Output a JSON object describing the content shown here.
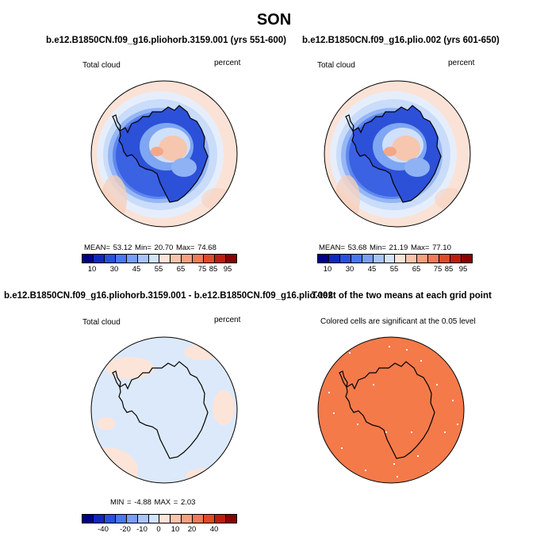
{
  "title": "SON",
  "panels": [
    {
      "title": "b.e12.B1850CN.f09_g16.pliohorb.3159.001 (yrs 551-600)",
      "left_label": "Total cloud",
      "right_label": "percent",
      "stats": "MEAN=  53.12  Min=  20.70  Max=  74.68",
      "colorbar_labels": [
        "10",
        "30",
        "45",
        "55",
        "65",
        "75",
        "85",
        "95"
      ]
    },
    {
      "title": "b.e12.B1850CN.f09_g16.plio.002 (yrs 601-650)",
      "left_label": "Total cloud",
      "right_label": "percent",
      "stats": "MEAN=  53.68  Min=  21.19  Max=  77.10",
      "colorbar_labels": [
        "10",
        "30",
        "45",
        "55",
        "65",
        "75",
        "85",
        "95"
      ]
    },
    {
      "title": "b.e12.B1850CN.f09_g16.pliohorb.3159.001 - b.e12.B1850CN.f09_g16.plio.002",
      "left_label": "Total cloud",
      "right_label": "percent",
      "stats": "MIN =  -4.88  MAX =   2.03",
      "colorbar_labels": [
        "-40",
        "-20",
        "-10",
        "0",
        "10",
        "20",
        "40"
      ]
    },
    {
      "title": "T-test of the two means at each grid point",
      "subtitle": "Colored cells are significant at the 0.05 level"
    }
  ],
  "colors": {
    "scale_abs": [
      "#00008b",
      "#0f28c0",
      "#2850e0",
      "#4a78f0",
      "#789ef5",
      "#a8c4f8",
      "#d2e4fc",
      "#fde4d8",
      "#f8c4aa",
      "#f5a080",
      "#f07b58",
      "#e04a28",
      "#c01c0c",
      "#8b0000"
    ],
    "ttest_fill": "#f47a4a"
  }
}
